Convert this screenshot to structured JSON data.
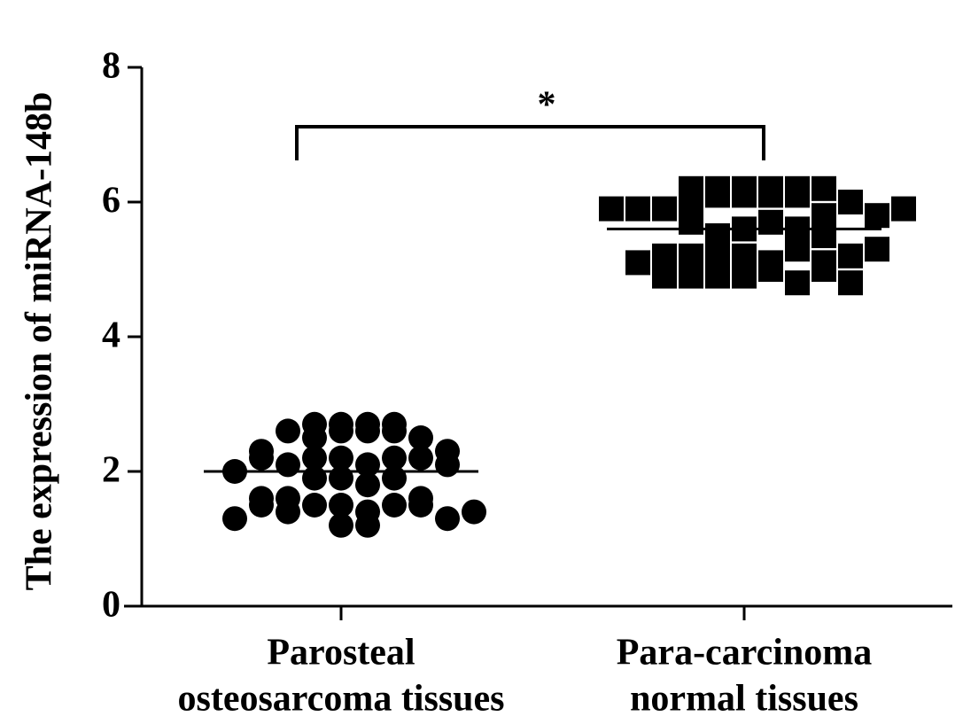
{
  "chart_data": {
    "type": "dot",
    "ylabel": "The expression of miRNA-148b",
    "categories": [
      [
        "Parosteal",
        "osteosarcoma tissues"
      ],
      [
        "Para-carcinoma",
        "normal tissues"
      ]
    ],
    "values": [
      [
        2.7,
        2.6,
        2.7,
        2.6,
        2.5,
        2.6,
        2.7,
        2.6,
        2.5,
        2.7,
        2.2,
        2.1,
        2.2,
        2.3,
        2.2,
        2.1,
        2.2,
        2.2,
        2.1,
        2.3,
        1.9,
        1.8,
        1.9,
        2.0,
        1.9,
        1.5,
        1.6,
        1.4,
        1.5,
        1.6,
        1.5,
        1.4,
        1.5,
        1.6,
        1.5,
        1.3,
        1.2,
        1.3,
        1.4,
        1.2
      ],
      [
        6.2,
        6.1,
        6.2,
        6.2,
        6.1,
        6.2,
        6.2,
        6.1,
        6.2,
        6.1,
        5.9,
        5.8,
        5.9,
        6.0,
        5.9,
        5.8,
        5.9,
        5.9,
        5.6,
        5.7,
        5.5,
        5.6,
        5.7,
        5.5,
        5.2,
        5.1,
        5.2,
        5.3,
        5.2,
        5.1,
        5.2,
        5.2,
        5.1,
        5.3,
        4.9,
        5.0,
        4.9,
        4.8,
        4.9,
        5.0,
        4.9,
        4.8
      ]
    ],
    "means": [
      2.0,
      5.6
    ],
    "markers": [
      "circle",
      "square"
    ],
    "color": "#000000",
    "annotation": "*",
    "ylim": [
      0,
      8
    ],
    "yticks": [
      0,
      2,
      4,
      6,
      8
    ]
  }
}
